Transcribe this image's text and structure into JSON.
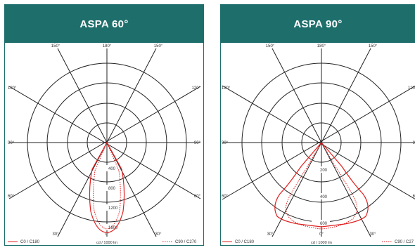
{
  "panels": [
    {
      "title": "ASPA 60°",
      "angle_labels": {
        "top_left": "150°",
        "top": "180°",
        "top_right": "150°",
        "upper_left": "120°",
        "upper_right": "120°",
        "mid_left": "90°",
        "mid_right": "90°",
        "lower_left": "60°",
        "lower_right": "60°",
        "bottom_left": "30°",
        "bottom": "0°",
        "bottom_right": "30°"
      },
      "ring_labels": [
        "400",
        "800",
        "1200",
        "1600"
      ],
      "legend": {
        "c0": "C0 / C180",
        "c90": "C90 / C270"
      },
      "unit": "cd / 1000 lm",
      "colors": {
        "curve": "#e02020",
        "grid": "#222222",
        "accent": "#1e6f6c"
      }
    },
    {
      "title": "ASPA 90°",
      "angle_labels": {
        "top_left": "150°",
        "top": "180°",
        "top_right": "150°",
        "upper_left": "120°",
        "upper_right": "120",
        "mid_left": "90°",
        "mid_right": "9",
        "lower_left": "60°",
        "lower_right": "6",
        "bottom_left": "30°",
        "bottom": "0°",
        "bottom_right": "30°"
      },
      "ring_labels": [
        "200",
        "400",
        "600"
      ],
      "legend": {
        "c0": "C0 / C180",
        "c90": "C90 / C27"
      },
      "unit": "cd / 1000 lm",
      "colors": {
        "curve": "#e02020",
        "grid": "#222222",
        "accent": "#1e6f6c"
      }
    }
  ]
}
